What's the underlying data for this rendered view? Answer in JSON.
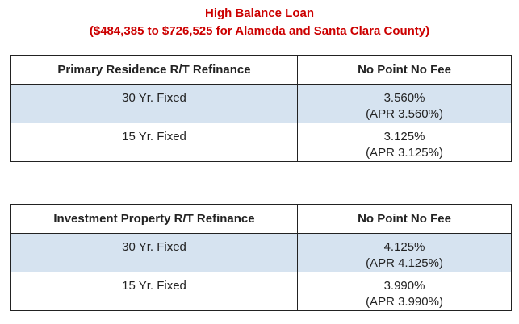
{
  "header": {
    "title": "High Balance Loan",
    "subtitle": "($484,385 to $726,525 for Alameda and Santa Clara County)"
  },
  "tables": [
    {
      "columns": [
        "Primary Residence R/T Refinance",
        "No Point No Fee"
      ],
      "rows": [
        {
          "term": "30 Yr. Fixed",
          "rate": "3.560%",
          "apr": "(APR 3.560%)"
        },
        {
          "term": "15 Yr. Fixed",
          "rate": "3.125%",
          "apr": "(APR 3.125%)"
        }
      ]
    },
    {
      "columns": [
        "Investment Property R/T Refinance",
        "No Point No Fee"
      ],
      "rows": [
        {
          "term": "30 Yr. Fixed",
          "rate": "4.125%",
          "apr": "(APR 4.125%)"
        },
        {
          "term": "15 Yr. Fixed",
          "rate": "3.990%",
          "apr": "(APR 3.990%)"
        }
      ]
    }
  ],
  "colors": {
    "title": "#cc0000",
    "shaded_row": "#d6e3f0",
    "border": "#222222"
  }
}
